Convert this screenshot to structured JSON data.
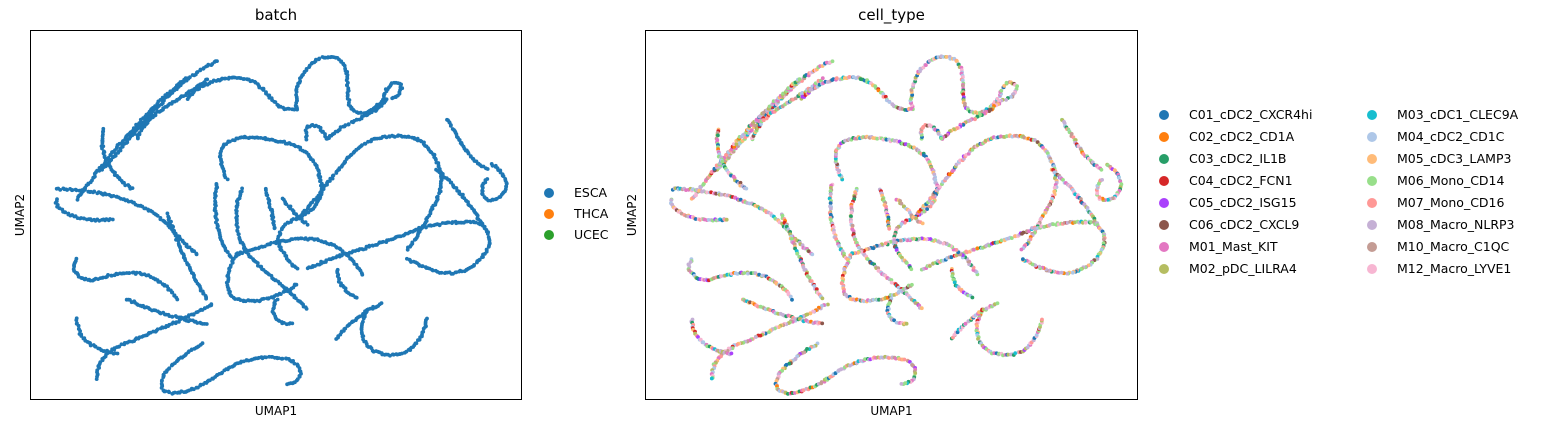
{
  "chart_data": [
    {
      "type": "scatter",
      "title": "batch",
      "xlabel": "UMAP1",
      "ylabel": "UMAP2",
      "xticks": [],
      "yticks": [],
      "grid": false,
      "legend_position": "right",
      "series": [
        {
          "name": "ESCA",
          "color": "#1f77b4",
          "values": "dense points along curved strands (UMAP embedding)"
        },
        {
          "name": "THCA",
          "color": "#ff7f0e",
          "values": []
        },
        {
          "name": "UCEC",
          "color": "#2ca02c",
          "values": []
        }
      ]
    },
    {
      "type": "scatter",
      "title": "cell_type",
      "xlabel": "UMAP1",
      "ylabel": "UMAP2",
      "xticks": [],
      "yticks": [],
      "grid": false,
      "legend_position": "right",
      "series": [
        {
          "name": "C01_cDC2_CXCR4hi",
          "color": "#1f77b4"
        },
        {
          "name": "C02_cDC2_CD1A",
          "color": "#ff7f0e"
        },
        {
          "name": "C03_cDC2_IL1B",
          "color": "#279e68"
        },
        {
          "name": "C04_cDC2_FCN1",
          "color": "#d62728"
        },
        {
          "name": "C05_cDC2_ISG15",
          "color": "#aa40fc"
        },
        {
          "name": "C06_cDC2_CXCL9",
          "color": "#8c564b"
        },
        {
          "name": "M01_Mast_KIT",
          "color": "#e377c2"
        },
        {
          "name": "M02_pDC_LILRA4",
          "color": "#b5bd61"
        },
        {
          "name": "M03_cDC1_CLEC9A",
          "color": "#17becf"
        },
        {
          "name": "M04_cDC2_CD1C",
          "color": "#aec7e8"
        },
        {
          "name": "M05_cDC3_LAMP3",
          "color": "#ffbb78"
        },
        {
          "name": "M06_Mono_CD14",
          "color": "#98df8a"
        },
        {
          "name": "M07_Mono_CD16",
          "color": "#ff9896"
        },
        {
          "name": "M08_Macro_NLRP3",
          "color": "#c5b0d5"
        },
        {
          "name": "M10_Macro_C1QC",
          "color": "#c49c94"
        },
        {
          "name": "M12_Macro_LYVE1",
          "color": "#f7b6d2"
        }
      ]
    }
  ]
}
